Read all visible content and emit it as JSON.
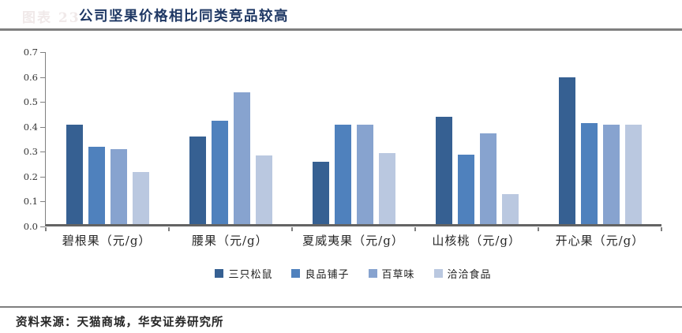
{
  "header": {
    "ghost_label": "图表 23",
    "title": "公司坚果价格相比同类竞品较高"
  },
  "footer": {
    "source": "资料来源：天猫商城，华安证券研究所"
  },
  "chart_data": {
    "type": "bar",
    "title": "公司坚果价格相比同类竞品较高",
    "xlabel": "",
    "ylabel": "",
    "ylim": [
      0,
      0.7
    ],
    "ytick_step": 0.1,
    "ytick_labels": [
      "0.7",
      "0.6",
      "0.5",
      "0.4",
      "0.3",
      "0.2",
      "0.1",
      "0.0"
    ],
    "grid": false,
    "legend_position": "bottom-center",
    "categories": [
      "碧根果（元/g）",
      "腰果（元/g）",
      "夏威夷果（元/g）",
      "山核桃（元/g）",
      "开心果（元/g）"
    ],
    "series": [
      {
        "name": "三只松鼠",
        "color": "#366092",
        "values": [
          0.4,
          0.35,
          0.25,
          0.43,
          0.59
        ]
      },
      {
        "name": "良品铺子",
        "color": "#4F81BD",
        "values": [
          0.31,
          0.415,
          0.4,
          0.28,
          0.405
        ]
      },
      {
        "name": "百草味",
        "color": "#87A3CF",
        "values": [
          0.3,
          0.53,
          0.4,
          0.365,
          0.4
        ]
      },
      {
        "name": "洽洽食品",
        "color": "#BAC8E0",
        "values": [
          0.21,
          0.275,
          0.285,
          0.12,
          0.4
        ]
      }
    ],
    "colors": {
      "title": "#1F3864",
      "axis_line": "#808080",
      "baseline": "#636363",
      "rule": "#7f7f7f"
    }
  }
}
